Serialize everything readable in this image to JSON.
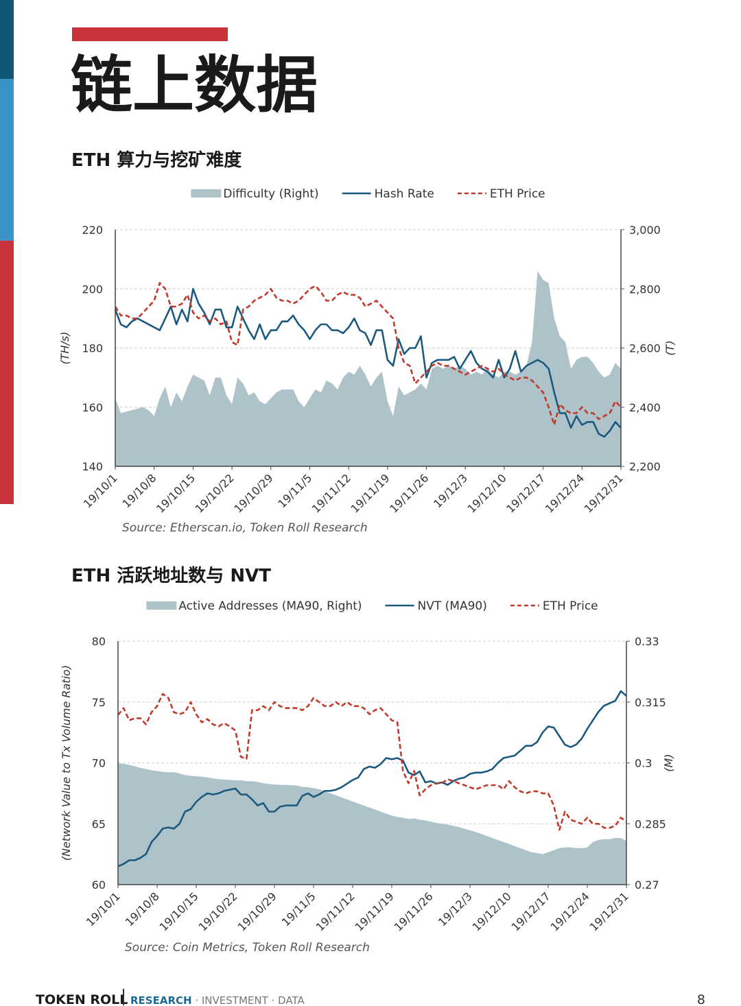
{
  "page_title": "链上数据",
  "footer": {
    "brand": "TOKEN ROLL",
    "tagline_highlight": "RESEARCH",
    "tagline_rest": " · INVESTMENT · DATA",
    "page_number": 8
  },
  "chart_data": [
    {
      "type": "line",
      "title": "ETH 算力与挖矿难度",
      "source": "Source: Etherscan.io, Token Roll Research",
      "ylabel": "(TH/s)",
      "y2label": "(T)",
      "categories": [
        "19/10/1",
        null,
        null,
        null,
        null,
        null,
        null,
        "19/10/8",
        null,
        null,
        null,
        null,
        null,
        null,
        "19/10/15",
        null,
        null,
        null,
        null,
        null,
        null,
        "19/10/22",
        null,
        null,
        null,
        null,
        null,
        null,
        "19/10/29",
        null,
        null,
        null,
        null,
        null,
        null,
        "19/11/5",
        null,
        null,
        null,
        null,
        null,
        null,
        "19/11/12",
        null,
        null,
        null,
        null,
        null,
        null,
        "19/11/19",
        null,
        null,
        null,
        null,
        null,
        null,
        "19/11/26",
        null,
        null,
        null,
        null,
        null,
        null,
        "19/12/3",
        null,
        null,
        null,
        null,
        null,
        null,
        "19/12/10",
        null,
        null,
        null,
        null,
        null,
        null,
        "19/12/17",
        null,
        null,
        null,
        null,
        null,
        null,
        "19/12/24",
        null,
        null,
        null,
        null,
        null,
        null,
        "19/12/31"
      ],
      "ylim": [
        140,
        220
      ],
      "yticks": [
        140,
        160,
        180,
        200,
        220
      ],
      "y2lim": [
        2200,
        3000
      ],
      "y2ticks": [
        {
          "value": 2200,
          "label": "2,200"
        },
        {
          "value": 2400,
          "label": "2,400"
        },
        {
          "value": 2600,
          "label": "2,600"
        },
        {
          "value": 2800,
          "label": "2,800"
        },
        {
          "value": 3000,
          "label": "3,000"
        }
      ],
      "grid": true,
      "series": [
        {
          "name": "Difficulty (Right)",
          "type": "area",
          "axis": "y2",
          "color": "#aec2ca",
          "values": [
            2430,
            2380,
            2385,
            2390,
            2395,
            2400,
            2390,
            2370,
            2430,
            2470,
            2400,
            2450,
            2420,
            2470,
            2510,
            2500,
            2490,
            2440,
            2500,
            2500,
            2440,
            2410,
            2500,
            2480,
            2440,
            2450,
            2420,
            2410,
            2430,
            2450,
            2460,
            2460,
            2460,
            2420,
            2400,
            2430,
            2460,
            2450,
            2490,
            2480,
            2460,
            2500,
            2520,
            2510,
            2540,
            2510,
            2470,
            2500,
            2520,
            2420,
            2370,
            2470,
            2440,
            2450,
            2460,
            2480,
            2460,
            2530,
            2540,
            2530,
            2540,
            2530,
            2540,
            2530,
            2510,
            2520,
            2510,
            2530,
            2510,
            2500,
            2520,
            2520,
            2510,
            2520,
            2540,
            2620,
            2860,
            2830,
            2820,
            2700,
            2640,
            2620,
            2530,
            2560,
            2570,
            2570,
            2550,
            2520,
            2500,
            2510,
            2550,
            2530
          ]
        },
        {
          "name": "Hash Rate",
          "type": "line",
          "color": "#1b5a7e",
          "values": [
            193,
            188,
            187,
            189,
            190,
            189,
            188,
            187,
            186,
            190,
            194,
            188,
            193,
            189,
            200,
            195,
            192,
            188,
            193,
            193,
            187,
            187,
            194,
            190,
            186,
            183,
            188,
            183,
            186,
            186,
            189,
            189,
            191,
            188,
            186,
            183,
            186,
            188,
            188,
            186,
            186,
            185,
            187,
            190,
            186,
            185,
            181,
            186,
            186,
            176,
            174,
            183,
            178,
            180,
            180,
            184,
            170,
            175,
            176,
            176,
            176,
            177,
            173,
            176,
            179,
            175,
            173,
            172,
            170,
            176,
            170,
            173,
            179,
            172,
            174,
            175,
            176,
            175,
            173,
            165,
            158,
            158,
            153,
            157,
            154,
            155,
            155,
            151,
            150,
            152,
            155,
            153
          ]
        },
        {
          "name": "ETH Price",
          "type": "line",
          "dash": true,
          "axis": "y2",
          "color": "#c0392b",
          "values": [
            2740,
            2710,
            2710,
            2700,
            2700,
            2720,
            2740,
            2760,
            2820,
            2800,
            2740,
            2740,
            2750,
            2780,
            2720,
            2700,
            2710,
            2690,
            2700,
            2680,
            2690,
            2620,
            2610,
            2730,
            2740,
            2760,
            2770,
            2780,
            2800,
            2770,
            2760,
            2760,
            2750,
            2760,
            2780,
            2800,
            2810,
            2790,
            2760,
            2760,
            2780,
            2790,
            2780,
            2780,
            2770,
            2740,
            2750,
            2760,
            2740,
            2720,
            2700,
            2600,
            2550,
            2540,
            2480,
            2500,
            2520,
            2540,
            2550,
            2540,
            2540,
            2530,
            2520,
            2510,
            2520,
            2530,
            2540,
            2530,
            2520,
            2530,
            2510,
            2500,
            2490,
            2500,
            2500,
            2490,
            2470,
            2450,
            2400,
            2340,
            2410,
            2390,
            2380,
            2380,
            2400,
            2380,
            2380,
            2360,
            2370,
            2380,
            2420,
            2400
          ]
        }
      ]
    },
    {
      "type": "line",
      "title": "ETH 活跃地址数与 NVT",
      "source": "Source: Coin Metrics, Token Roll Research",
      "ylabel": "(Network Value to Tx Volume Ratio)",
      "y2label": "(M)",
      "categories": [
        "19/10/1",
        null,
        null,
        null,
        null,
        null,
        null,
        "19/10/8",
        null,
        null,
        null,
        null,
        null,
        null,
        "19/10/15",
        null,
        null,
        null,
        null,
        null,
        null,
        "19/10/22",
        null,
        null,
        null,
        null,
        null,
        null,
        "19/10/29",
        null,
        null,
        null,
        null,
        null,
        null,
        "19/11/5",
        null,
        null,
        null,
        null,
        null,
        null,
        "19/11/12",
        null,
        null,
        null,
        null,
        null,
        null,
        "19/11/19",
        null,
        null,
        null,
        null,
        null,
        null,
        "19/11/26",
        null,
        null,
        null,
        null,
        null,
        null,
        "19/12/3",
        null,
        null,
        null,
        null,
        null,
        null,
        "19/12/10",
        null,
        null,
        null,
        null,
        null,
        null,
        "19/12/17",
        null,
        null,
        null,
        null,
        null,
        null,
        "19/12/24",
        null,
        null,
        null,
        null,
        null,
        null,
        "19/12/31"
      ],
      "ylim": [
        60,
        80
      ],
      "yticks": [
        60,
        65,
        70,
        75,
        80
      ],
      "y2lim": [
        0.27,
        0.33
      ],
      "y2ticks": [
        0.27,
        0.285,
        0.3,
        0.315,
        0.33
      ],
      "grid": true,
      "series": [
        {
          "name": "Active Addresses (MA90, Right)",
          "type": "area",
          "axis": "y2",
          "color": "#aec2ca",
          "values": [
            0.2999,
            0.2998,
            0.2995,
            0.2992,
            0.2988,
            0.2985,
            0.2982,
            0.298,
            0.2978,
            0.2977,
            0.2977,
            0.2974,
            0.297,
            0.2968,
            0.2967,
            0.2966,
            0.2964,
            0.2962,
            0.296,
            0.2959,
            0.2958,
            0.2957,
            0.2957,
            0.2955,
            0.2955,
            0.2953,
            0.295,
            0.2948,
            0.2947,
            0.2946,
            0.2946,
            0.2945,
            0.2944,
            0.2941,
            0.294,
            0.2938,
            0.2935,
            0.293,
            0.2925,
            0.292,
            0.2915,
            0.291,
            0.2905,
            0.29,
            0.2895,
            0.289,
            0.2885,
            0.288,
            0.2875,
            0.287,
            0.2867,
            0.2865,
            0.2862,
            0.2863,
            0.286,
            0.2858,
            0.2855,
            0.2852,
            0.285,
            0.2848,
            0.2845,
            0.2842,
            0.2838,
            0.2834,
            0.283,
            0.2825,
            0.282,
            0.2815,
            0.281,
            0.2805,
            0.28,
            0.2795,
            0.279,
            0.2785,
            0.278,
            0.2778,
            0.2775,
            0.278,
            0.2785,
            0.279,
            0.2792,
            0.2792,
            0.279,
            0.279,
            0.2792,
            0.2805,
            0.281,
            0.2812,
            0.2812,
            0.2815,
            0.2815,
            0.2808
          ]
        },
        {
          "name": "NVT (MA90)",
          "type": "line",
          "color": "#1b5a7e",
          "values": [
            61.5,
            61.7,
            62,
            62,
            62.2,
            62.5,
            63.5,
            64,
            64.6,
            64.7,
            64.6,
            65,
            66,
            66.2,
            66.8,
            67.2,
            67.5,
            67.4,
            67.5,
            67.7,
            67.8,
            67.9,
            67.4,
            67.4,
            67,
            66.5,
            66.7,
            66,
            66,
            66.4,
            66.5,
            66.5,
            66.5,
            67.3,
            67.5,
            67.2,
            67.4,
            67.7,
            67.7,
            67.8,
            68,
            68.3,
            68.6,
            68.8,
            69.5,
            69.7,
            69.6,
            69.9,
            70.4,
            70.3,
            70.4,
            70.2,
            69.2,
            69,
            69.3,
            68.4,
            68.5,
            68.3,
            68.4,
            68.2,
            68.5,
            68.7,
            68.8,
            69.1,
            69.2,
            69.2,
            69.3,
            69.5,
            70,
            70.4,
            70.5,
            70.6,
            71,
            71.4,
            71.4,
            71.7,
            72.5,
            73,
            72.9,
            72.2,
            71.5,
            71.3,
            71.5,
            72,
            72.8,
            73.5,
            74.2,
            74.7,
            74.9,
            75.1,
            75.9,
            75.5
          ]
        },
        {
          "name": "ETH Price",
          "type": "line",
          "dash": true,
          "axis": "y2",
          "color": "#c0392b",
          "values": [
            0.3118,
            0.3135,
            0.3105,
            0.311,
            0.311,
            0.3095,
            0.3125,
            0.314,
            0.317,
            0.316,
            0.3125,
            0.312,
            0.3125,
            0.315,
            0.312,
            0.31,
            0.3108,
            0.3095,
            0.309,
            0.3098,
            0.309,
            0.308,
            0.3015,
            0.301,
            0.313,
            0.313,
            0.314,
            0.313,
            0.315,
            0.314,
            0.3135,
            0.3135,
            0.3135,
            0.313,
            0.314,
            0.316,
            0.315,
            0.314,
            0.314,
            0.315,
            0.314,
            0.315,
            0.314,
            0.314,
            0.3135,
            0.312,
            0.313,
            0.3135,
            0.312,
            0.3105,
            0.31,
            0.298,
            0.295,
            0.298,
            0.292,
            0.2935,
            0.2945,
            0.295,
            0.295,
            0.296,
            0.2955,
            0.295,
            0.2945,
            0.294,
            0.2935,
            0.294,
            0.2945,
            0.2945,
            0.2945,
            0.2935,
            0.2955,
            0.294,
            0.293,
            0.2925,
            0.293,
            0.293,
            0.2925,
            0.2925,
            0.2895,
            0.2835,
            0.288,
            0.286,
            0.2855,
            0.285,
            0.2865,
            0.285,
            0.285,
            0.284,
            0.284,
            0.2845,
            0.2865,
            0.2855
          ]
        }
      ]
    }
  ]
}
